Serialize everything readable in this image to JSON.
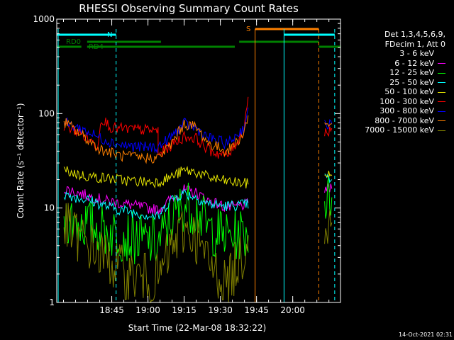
{
  "chart_data": {
    "type": "line",
    "title": "RHESSI Observing Summary Count Rates",
    "xlabel": "Start Time (22-Mar-08 18:32:22)",
    "ylabel": "Count Rate (s⁻¹ detector⁻¹)",
    "y_scale": "log",
    "ylim": [
      1,
      1000
    ],
    "xlim_minutes": [
      18.37,
      20.33
    ],
    "y_ticks": [
      "1",
      "10",
      "100",
      "1000"
    ],
    "x_ticks": [
      "18:45",
      "19:00",
      "19:15",
      "19:30",
      "19:45",
      "20:00"
    ],
    "legend_header": [
      "Det 1,3,4,5,6,9,",
      "FDecim 1, Att 0"
    ],
    "legend_position": "right",
    "footer": "14-Oct-2021 02:31",
    "flag_labels": {
      "saa": "S",
      "night": "N",
      "rd0": "RD0",
      "rd4": "RD4"
    },
    "series": [
      {
        "name": "3 - 6 keV",
        "color": "#000000",
        "points": [
          [
            18.42,
            9.5
          ],
          [
            18.6,
            7.5
          ],
          [
            18.72,
            5.0
          ],
          [
            18.9,
            3.5
          ],
          [
            19.07,
            2.3
          ],
          [
            19.15,
            5
          ],
          [
            19.25,
            9.5
          ],
          [
            19.33,
            7
          ],
          [
            19.42,
            3.5
          ],
          [
            19.55,
            2.5
          ],
          [
            19.7,
            4
          ],
          [
            20.22,
            9
          ],
          [
            20.27,
            10
          ]
        ]
      },
      {
        "name": "6 - 12 keV",
        "color": "#ff00ff",
        "points": [
          [
            18.42,
            16
          ],
          [
            18.55,
            14
          ],
          [
            18.7,
            12
          ],
          [
            18.85,
            11
          ],
          [
            19.07,
            9.5
          ],
          [
            19.15,
            12
          ],
          [
            19.25,
            15.5
          ],
          [
            19.33,
            14.5
          ],
          [
            19.42,
            12
          ],
          [
            19.55,
            10
          ],
          [
            19.7,
            11
          ],
          [
            20.22,
            16
          ],
          [
            20.27,
            16
          ]
        ]
      },
      {
        "name": "12 - 25 keV",
        "color": "#00ff00",
        "points": [
          [
            18.42,
            8
          ],
          [
            18.6,
            6.5
          ],
          [
            18.75,
            5.5
          ],
          [
            18.9,
            4.8
          ],
          [
            19.07,
            4.2
          ],
          [
            19.15,
            7
          ],
          [
            19.25,
            11
          ],
          [
            19.33,
            9.5
          ],
          [
            19.42,
            6
          ],
          [
            19.55,
            5
          ],
          [
            19.7,
            5.5
          ],
          [
            20.22,
            12
          ],
          [
            20.27,
            13
          ]
        ]
      },
      {
        "name": "25 - 50 keV",
        "color": "#00ffff",
        "points": [
          [
            18.42,
            14
          ],
          [
            18.6,
            12
          ],
          [
            18.75,
            10
          ],
          [
            18.9,
            9
          ],
          [
            19.07,
            8
          ],
          [
            19.15,
            12
          ],
          [
            19.25,
            14.5
          ],
          [
            19.33,
            13
          ],
          [
            19.42,
            11
          ],
          [
            19.55,
            10.5
          ],
          [
            19.7,
            11
          ],
          [
            20.22,
            21
          ],
          [
            20.27,
            20
          ]
        ]
      },
      {
        "name": "50 - 100 keV",
        "color": "#e5e500",
        "points": [
          [
            18.42,
            25
          ],
          [
            18.55,
            22
          ],
          [
            18.67,
            21
          ],
          [
            18.8,
            20
          ],
          [
            18.95,
            19
          ],
          [
            19.07,
            19
          ],
          [
            19.15,
            21
          ],
          [
            19.25,
            25
          ],
          [
            19.33,
            24
          ],
          [
            19.42,
            21
          ],
          [
            19.55,
            19
          ],
          [
            19.7,
            18
          ],
          [
            20.22,
            23
          ],
          [
            20.27,
            22
          ]
        ]
      },
      {
        "name": "100 - 300 keV",
        "color": "#ff0000",
        "points": [
          [
            18.42,
            75
          ],
          [
            18.55,
            60
          ],
          [
            18.65,
            45
          ],
          [
            18.68,
            90
          ],
          [
            18.75,
            70
          ],
          [
            19.07,
            66
          ],
          [
            19.07,
            36
          ],
          [
            19.15,
            45
          ],
          [
            19.25,
            57
          ],
          [
            19.33,
            55
          ],
          [
            19.42,
            41
          ],
          [
            19.55,
            35
          ],
          [
            19.66,
            65
          ],
          [
            19.7,
            190
          ],
          [
            20.22,
            62
          ],
          [
            20.27,
            70
          ]
        ]
      },
      {
        "name": "300 - 800 keV",
        "color": "#0000ff",
        "points": [
          [
            18.42,
            80
          ],
          [
            18.55,
            68
          ],
          [
            18.67,
            55
          ],
          [
            18.8,
            47
          ],
          [
            18.95,
            44
          ],
          [
            19.07,
            44
          ],
          [
            19.15,
            55
          ],
          [
            19.25,
            78
          ],
          [
            19.33,
            70
          ],
          [
            19.42,
            55
          ],
          [
            19.55,
            48
          ],
          [
            19.66,
            70
          ],
          [
            19.7,
            125
          ],
          [
            20.22,
            75
          ],
          [
            20.27,
            78
          ]
        ]
      },
      {
        "name": "800 - 7000 keV",
        "color": "#ff8000",
        "points": [
          [
            18.42,
            82
          ],
          [
            18.55,
            58
          ],
          [
            18.67,
            42
          ],
          [
            18.8,
            36
          ],
          [
            18.95,
            34
          ],
          [
            19.07,
            34
          ],
          [
            19.15,
            45
          ],
          [
            19.25,
            78
          ],
          [
            19.33,
            72
          ],
          [
            19.42,
            48
          ],
          [
            19.55,
            40
          ],
          [
            19.66,
            60
          ],
          [
            19.7,
            110
          ],
          [
            20.22,
            76
          ],
          [
            20.27,
            78
          ]
        ]
      },
      {
        "name": "7000 - 15000 keV",
        "color": "#808000",
        "points": [
          [
            18.42,
            6.5
          ],
          [
            18.55,
            4.5
          ],
          [
            18.7,
            3
          ],
          [
            18.85,
            2
          ],
          [
            19.07,
            1.7
          ],
          [
            19.15,
            3.5
          ],
          [
            19.25,
            6
          ],
          [
            19.33,
            5
          ],
          [
            19.42,
            2.5
          ],
          [
            19.55,
            1.6
          ],
          [
            19.68,
            4
          ],
          [
            19.7,
            11
          ],
          [
            20.22,
            7
          ],
          [
            20.27,
            7
          ]
        ]
      }
    ],
    "vertical_markers": [
      {
        "x": 18.38,
        "color": "#00ffff",
        "style": "solid"
      },
      {
        "x": 18.78,
        "color": "#00ffff",
        "style": "dashed"
      },
      {
        "x": 19.74,
        "color": "#ff8000",
        "style": "solid"
      },
      {
        "x": 19.94,
        "color": "#00ffff",
        "style": "solid"
      },
      {
        "x": 20.18,
        "color": "#ff8000",
        "style": "dashed"
      },
      {
        "x": 20.29,
        "color": "#00ffff",
        "style": "dashed"
      }
    ]
  }
}
